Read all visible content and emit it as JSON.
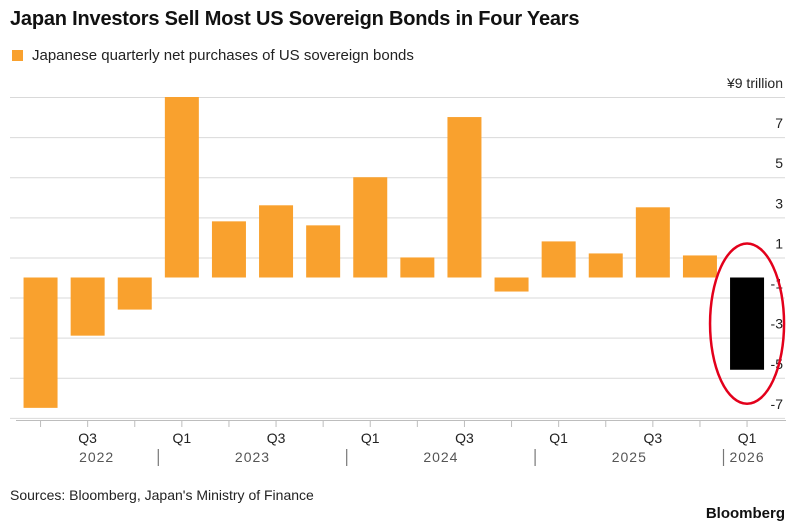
{
  "title": "Japan Investors Sell Most US Sovereign Bonds in Four Years",
  "legend": {
    "label": "Japanese quarterly net purchases of US sovereign bonds",
    "color": "#F9A12E"
  },
  "source": "Sources: Bloomberg, Japan's Ministry of Finance",
  "brand": "Bloomberg",
  "colors": {
    "bar": "#F9A12E",
    "highlight_bar": "#000000",
    "circle": "#E3001B",
    "grid": "#d9d9d9"
  },
  "chart_data": {
    "type": "bar",
    "unit": "¥9 trillion",
    "quarters": [
      "Q2 2022",
      "Q3 2022",
      "Q4 2022",
      "Q1 2023",
      "Q2 2023",
      "Q3 2023",
      "Q4 2023",
      "Q1 2024",
      "Q2 2024",
      "Q3 2024",
      "Q4 2024",
      "Q1 2025",
      "Q2 2025",
      "Q3 2025",
      "Q4 2025",
      "Q1 2026"
    ],
    "values": [
      -6.5,
      -2.9,
      -1.6,
      9.0,
      2.8,
      3.6,
      2.6,
      5.0,
      1.0,
      8.0,
      -0.7,
      1.8,
      1.2,
      3.5,
      1.1,
      -4.6
    ],
    "highlight_index": 15,
    "yticks": [
      {
        "value": 9,
        "label": "¥9 trillion"
      },
      {
        "value": 7,
        "label": "7"
      },
      {
        "value": 5,
        "label": "5"
      },
      {
        "value": 3,
        "label": "3"
      },
      {
        "value": 1,
        "label": "1"
      },
      {
        "value": -1,
        "label": "-1"
      },
      {
        "value": -3,
        "label": "-3"
      },
      {
        "value": -5,
        "label": "-5"
      },
      {
        "value": -7,
        "label": "-7"
      }
    ],
    "ylim": [
      -7,
      9
    ],
    "xtick_labels": [
      {
        "index": 1,
        "label": "Q3"
      },
      {
        "index": 3,
        "label": "Q1"
      },
      {
        "index": 5,
        "label": "Q3"
      },
      {
        "index": 7,
        "label": "Q1"
      },
      {
        "index": 9,
        "label": "Q3"
      },
      {
        "index": 11,
        "label": "Q1"
      },
      {
        "index": 13,
        "label": "Q3"
      },
      {
        "index": 15,
        "label": "Q1"
      }
    ],
    "years": [
      {
        "label": "2022",
        "first": 0,
        "last": 2
      },
      {
        "label": "2023",
        "first": 3,
        "last": 6
      },
      {
        "label": "2024",
        "first": 7,
        "last": 10
      },
      {
        "label": "2025",
        "first": 11,
        "last": 14
      },
      {
        "label": "2026",
        "first": 15,
        "last": 15
      }
    ],
    "grid": true
  }
}
